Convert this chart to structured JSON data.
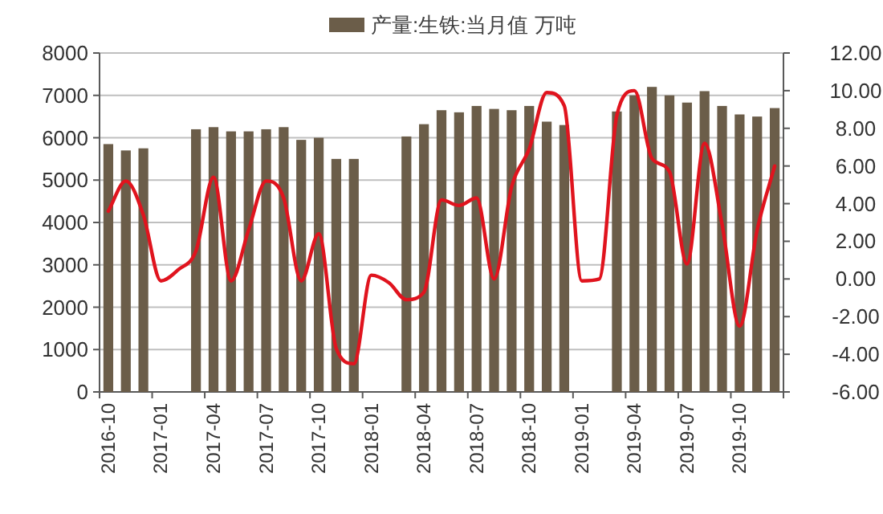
{
  "chart_data": {
    "type": "bar",
    "categories": [
      "2016-10",
      null,
      null,
      "2017-01",
      null,
      null,
      "2017-04",
      null,
      null,
      "2017-07",
      null,
      null,
      "2017-10",
      null,
      null,
      "2018-01",
      null,
      null,
      "2018-04",
      null,
      null,
      "2018-07",
      null,
      null,
      "2018-10",
      null,
      null,
      "2019-01",
      null,
      null,
      "2019-04",
      null,
      null,
      "2019-07",
      null,
      null,
      "2019-10",
      null,
      null
    ],
    "series": [
      {
        "name": "产量:生铁:当月值 万吨",
        "color": "#6b5d49",
        "values": [
          5850,
          5700,
          5750,
          null,
          null,
          6200,
          6250,
          6150,
          6150,
          6200,
          6250,
          5950,
          6000,
          5500,
          5500,
          null,
          null,
          6030,
          6320,
          6650,
          6600,
          6750,
          6680,
          6650,
          6750,
          6380,
          6300,
          null,
          null,
          6620,
          7000,
          7200,
          7000,
          6830,
          7100,
          6750,
          6550,
          6500,
          6700
        ]
      },
      {
        "type": "line",
        "axis": "y2",
        "color": "#e0141e",
        "values": [
          3.6,
          5.2,
          3.4,
          -0.1,
          0.5,
          1.5,
          5.4,
          -0.1,
          2.6,
          5.2,
          4.3,
          -0.1,
          2.4,
          -3.7,
          -4.5,
          0.2,
          -0.2,
          -1.1,
          -0.7,
          4.2,
          3.9,
          4.3,
          0.0,
          4.9,
          6.9,
          9.9,
          9.2,
          -0.1,
          0.0,
          8.7,
          10.0,
          6.4,
          5.7,
          0.8,
          7.2,
          2.9,
          -2.5,
          2.6,
          6.0
        ]
      }
    ],
    "ylim": [
      0,
      8000
    ],
    "yticks": [
      0,
      1000,
      2000,
      3000,
      4000,
      5000,
      6000,
      7000,
      8000
    ],
    "y2lim": [
      -6,
      12
    ],
    "y2ticks": [
      {
        "value": -6,
        "label": "-6.00"
      },
      {
        "value": -4,
        "label": "-4.00"
      },
      {
        "value": -2,
        "label": "-2.00"
      },
      {
        "value": 0,
        "label": "0.00"
      },
      {
        "value": 2,
        "label": "2.00"
      },
      {
        "value": 4,
        "label": "4.00"
      },
      {
        "value": 6,
        "label": "6.00"
      },
      {
        "value": 8,
        "label": "8.00"
      },
      {
        "value": 10,
        "label": "10.00"
      },
      {
        "value": 12,
        "label": "12.00"
      }
    ],
    "grid": "y",
    "legend": "top"
  }
}
